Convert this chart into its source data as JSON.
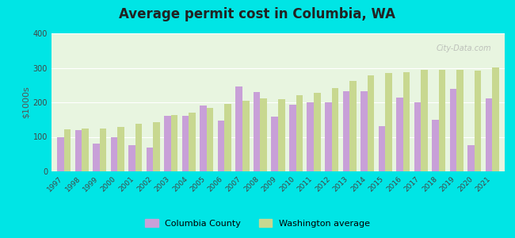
{
  "title": "Average permit cost in Columbia, WA",
  "ylabel": "$1000s",
  "years": [
    1997,
    1998,
    1999,
    2000,
    2001,
    2002,
    2003,
    2004,
    2005,
    2006,
    2007,
    2008,
    2009,
    2010,
    2011,
    2012,
    2013,
    2014,
    2015,
    2016,
    2017,
    2018,
    2019,
    2020,
    2021
  ],
  "columbia": [
    100,
    120,
    80,
    100,
    75,
    70,
    160,
    160,
    190,
    148,
    245,
    230,
    158,
    193,
    200,
    200,
    232,
    232,
    130,
    213,
    200,
    150,
    240,
    77,
    212
  ],
  "washington": [
    122,
    125,
    125,
    128,
    138,
    143,
    163,
    170,
    183,
    195,
    205,
    212,
    210,
    220,
    228,
    242,
    262,
    278,
    285,
    288,
    295,
    295,
    295,
    293,
    302
  ],
  "columbia_color": "#c8a0d8",
  "washington_color": "#c8d890",
  "background_outer": "#00e5e5",
  "background_plot": "#e8f5e0",
  "ylim": [
    0,
    400
  ],
  "yticks": [
    0,
    100,
    200,
    300,
    400
  ],
  "watermark": "City-Data.com",
  "legend_columbia": "Columbia County",
  "legend_washington": "Washington average"
}
